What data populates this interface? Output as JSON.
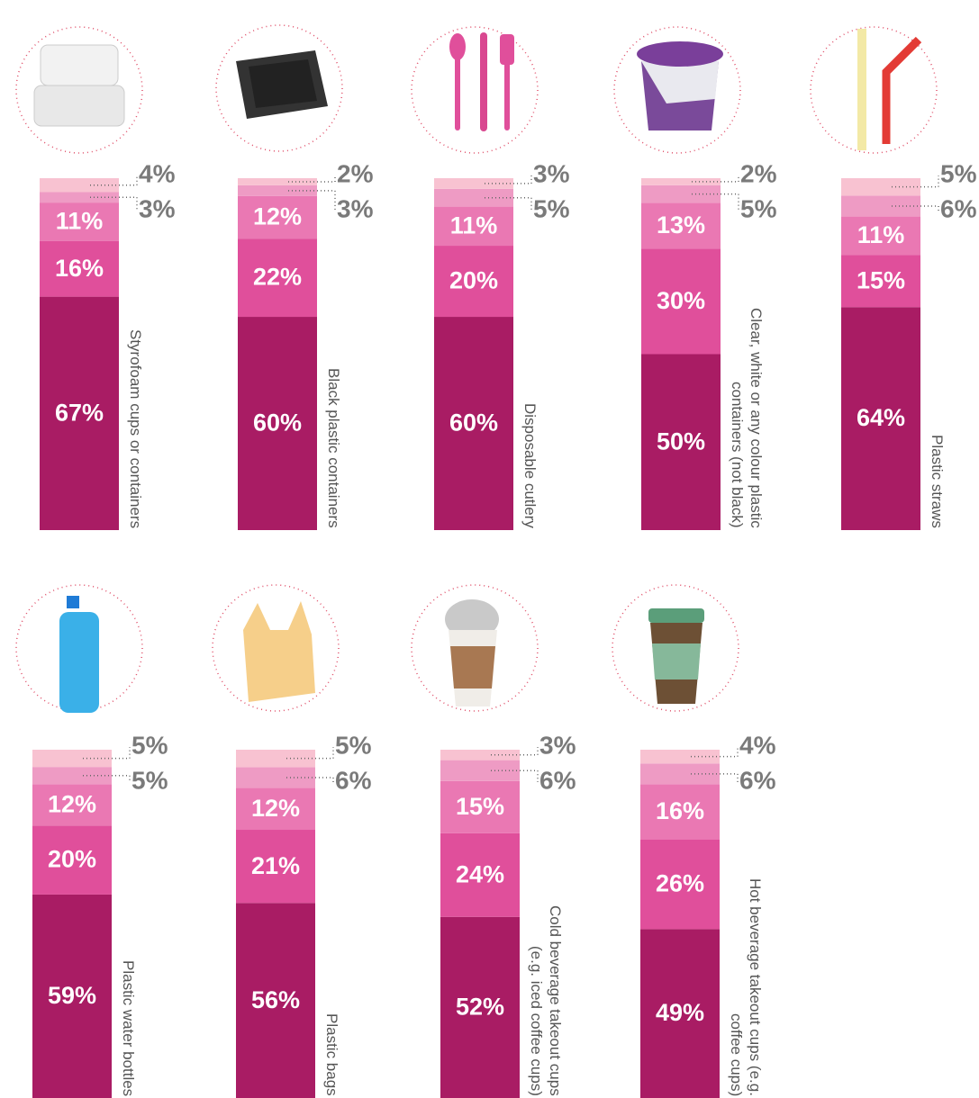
{
  "chart_data": [
    {
      "type": "stacked_bar",
      "title": "Styrofoam cups or containers",
      "values": [
        67,
        16,
        11,
        3,
        4
      ],
      "value_labels": [
        "67%",
        "16%",
        "11%",
        "3%",
        "4%"
      ],
      "colors": [
        "#a91c64",
        "#e04f9b",
        "#ea78b3",
        "#ee9bc4",
        "#f8c2d1"
      ]
    },
    {
      "type": "stacked_bar",
      "title": "Black plastic containers",
      "values": [
        60,
        22,
        12,
        3,
        2
      ],
      "value_labels": [
        "60%",
        "22%",
        "12%",
        "3%",
        "2%"
      ],
      "colors": [
        "#a91c64",
        "#e04f9b",
        "#ea78b3",
        "#ee9bc4",
        "#f8c2d1"
      ]
    },
    {
      "type": "stacked_bar",
      "title": "Disposable cutlery",
      "values": [
        60,
        20,
        11,
        5,
        3
      ],
      "value_labels": [
        "60%",
        "20%",
        "11%",
        "5%",
        "3%"
      ],
      "colors": [
        "#a91c64",
        "#e04f9b",
        "#ea78b3",
        "#ee9bc4",
        "#f8c2d1"
      ]
    },
    {
      "type": "stacked_bar",
      "title": "Clear, white or any colour plastic containers (not black)",
      "values": [
        50,
        30,
        13,
        5,
        2
      ],
      "value_labels": [
        "50%",
        "30%",
        "13%",
        "5%",
        "2%"
      ],
      "colors": [
        "#a91c64",
        "#e04f9b",
        "#ea78b3",
        "#ee9bc4",
        "#f8c2d1"
      ]
    },
    {
      "type": "stacked_bar",
      "title": "Plastic straws",
      "values": [
        64,
        15,
        11,
        6,
        5
      ],
      "value_labels": [
        "64%",
        "15%",
        "11%",
        "6%",
        "5%"
      ],
      "colors": [
        "#a91c64",
        "#e04f9b",
        "#ea78b3",
        "#ee9bc4",
        "#f8c2d1"
      ]
    },
    {
      "type": "stacked_bar",
      "title": "Plastic water bottles",
      "values": [
        59,
        20,
        12,
        5,
        5
      ],
      "value_labels": [
        "59%",
        "20%",
        "12%",
        "5%",
        "5%"
      ],
      "colors": [
        "#a91c64",
        "#e04f9b",
        "#ea78b3",
        "#ee9bc4",
        "#f8c2d1"
      ]
    },
    {
      "type": "stacked_bar",
      "title": "Plastic bags",
      "values": [
        56,
        21,
        12,
        6,
        5
      ],
      "value_labels": [
        "56%",
        "21%",
        "12%",
        "6%",
        "5%"
      ],
      "colors": [
        "#a91c64",
        "#e04f9b",
        "#ea78b3",
        "#ee9bc4",
        "#f8c2d1"
      ]
    },
    {
      "type": "stacked_bar",
      "title": "Cold beverage takeout cups (e.g. iced coffee cups)",
      "values": [
        52,
        24,
        15,
        6,
        3
      ],
      "value_labels": [
        "52%",
        "24%",
        "15%",
        "6%",
        "3%"
      ],
      "colors": [
        "#a91c64",
        "#e04f9b",
        "#ea78b3",
        "#ee9bc4",
        "#f8c2d1"
      ]
    },
    {
      "type": "stacked_bar",
      "title": "Hot beverage takeout cups (e.g. coffee cups)",
      "values": [
        49,
        26,
        16,
        6,
        4
      ],
      "value_labels": [
        "49%",
        "26%",
        "16%",
        "6%",
        "4%"
      ],
      "colors": [
        "#a91c64",
        "#e04f9b",
        "#ea78b3",
        "#ee9bc4",
        "#f8c2d1"
      ]
    }
  ]
}
